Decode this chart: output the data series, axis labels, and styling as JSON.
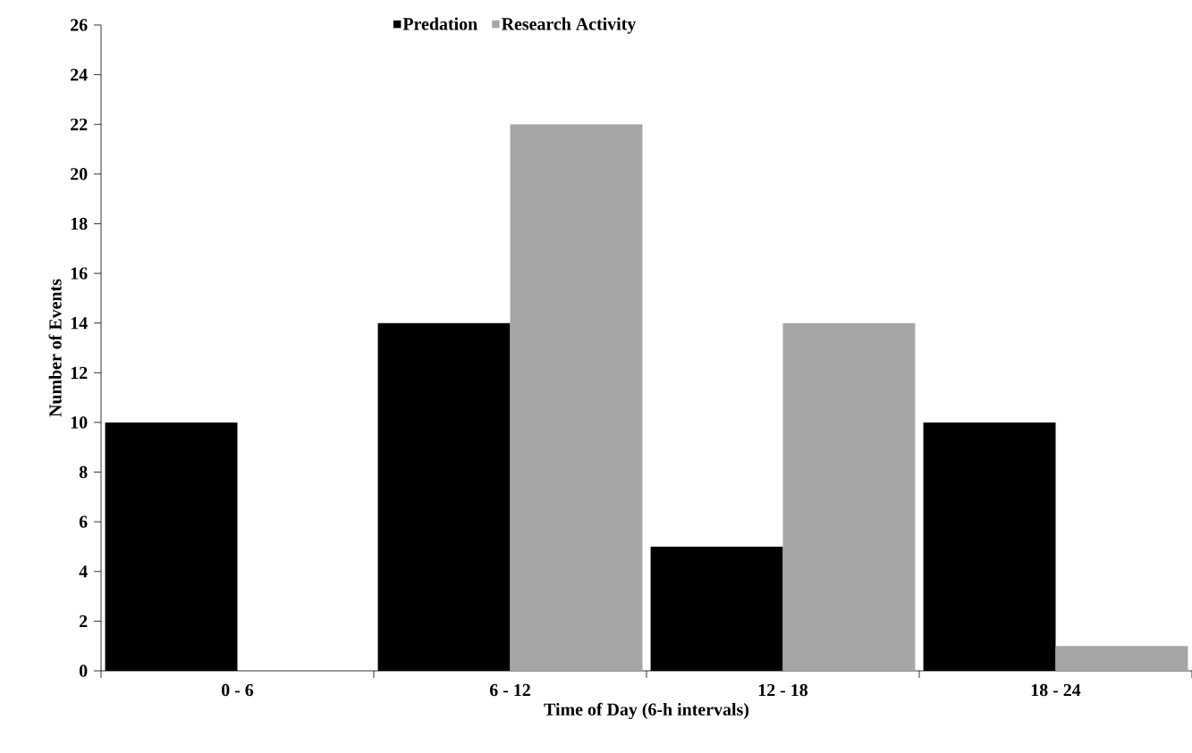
{
  "chart_data": {
    "type": "bar",
    "xlabel": "Time of Day (6-h intervals)",
    "ylabel": "Number of Events",
    "categories": [
      "0 - 6",
      "6 - 12",
      "12 - 18",
      "18 - 24"
    ],
    "series": [
      {
        "name": "Predation",
        "color": "#000000",
        "values": [
          10,
          14,
          5,
          10
        ]
      },
      {
        "name": "Research Activity",
        "color": "#a6a6a6",
        "values": [
          0,
          22,
          14,
          1
        ]
      }
    ],
    "ylim": [
      0,
      26
    ],
    "yticks": [
      0,
      2,
      4,
      6,
      8,
      10,
      12,
      14,
      16,
      18,
      20,
      22,
      24,
      26
    ],
    "grid": false,
    "legend": "top"
  }
}
